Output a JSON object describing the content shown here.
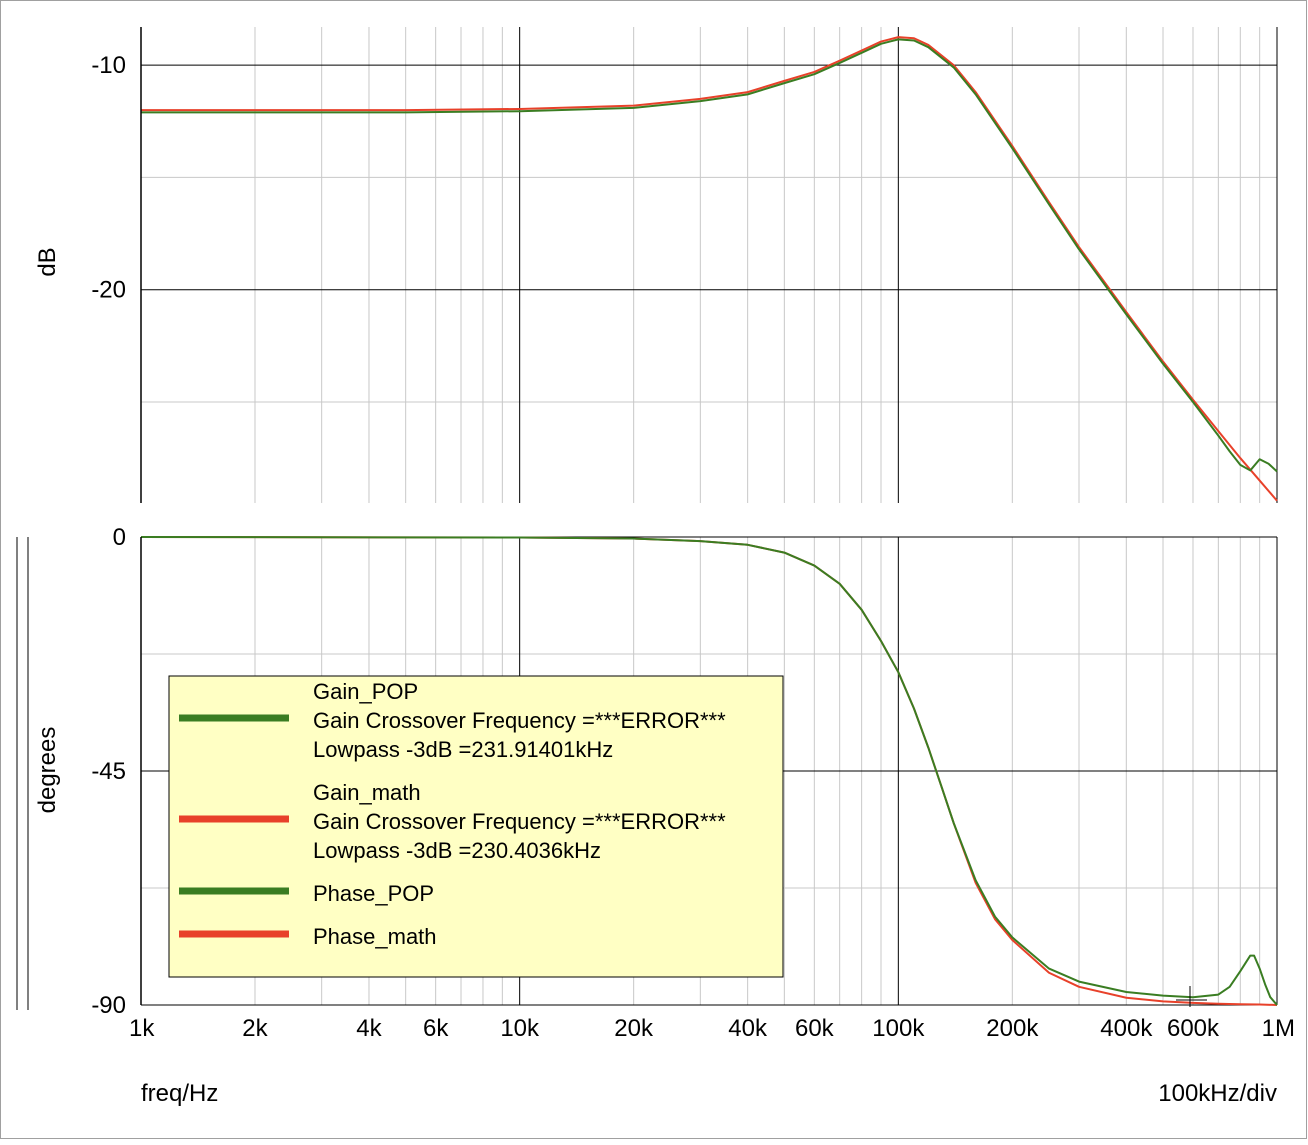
{
  "chart_data": [
    {
      "type": "line",
      "ylabel": "dB",
      "x_scale": "log",
      "xlim": [
        1000,
        1000000
      ],
      "ylim": [
        -29.5,
        -8.3
      ],
      "y_ticks": [
        {
          "value": -10,
          "label": "-10"
        },
        {
          "value": -20,
          "label": "-20"
        }
      ],
      "grid": true,
      "series": [
        {
          "name": "Gain_POP",
          "color": "#3a7d22",
          "x": [
            1000,
            5000,
            10000,
            20000,
            30000,
            40000,
            50000,
            60000,
            70000,
            80000,
            90000,
            100000,
            110000,
            120000,
            140000,
            160000,
            200000,
            250000,
            300000,
            400000,
            500000,
            600000,
            700000,
            750000,
            800000,
            850000,
            900000,
            950000,
            1000000
          ],
          "y": [
            -12.1,
            -12.1,
            -12.05,
            -11.9,
            -11.6,
            -11.3,
            -10.8,
            -10.4,
            -9.9,
            -9.45,
            -9.05,
            -8.85,
            -8.9,
            -9.2,
            -10.1,
            -11.3,
            -13.7,
            -16.2,
            -18.2,
            -21.1,
            -23.3,
            -25.0,
            -26.5,
            -27.2,
            -27.8,
            -28.05,
            -27.55,
            -27.75,
            -28.1
          ]
        },
        {
          "name": "Gain_math",
          "color": "#e8412a",
          "x": [
            1000,
            5000,
            10000,
            20000,
            30000,
            40000,
            50000,
            60000,
            70000,
            80000,
            90000,
            100000,
            110000,
            120000,
            140000,
            160000,
            200000,
            250000,
            300000,
            400000,
            500000,
            600000,
            700000,
            800000,
            900000,
            1000000
          ],
          "y": [
            -12.0,
            -12.0,
            -11.95,
            -11.8,
            -11.5,
            -11.2,
            -10.7,
            -10.3,
            -9.8,
            -9.35,
            -8.95,
            -8.75,
            -8.8,
            -9.1,
            -10.0,
            -11.2,
            -13.6,
            -16.1,
            -18.1,
            -21.0,
            -23.2,
            -24.9,
            -26.3,
            -27.5,
            -28.5,
            -29.4
          ]
        }
      ]
    },
    {
      "type": "line",
      "ylabel": "degrees",
      "xlabel": "freq/Hz",
      "x_scale": "log",
      "xlim": [
        1000,
        1000000
      ],
      "ylim": [
        -90,
        0
      ],
      "x_ticks": [
        {
          "value": 1000,
          "label": "1k"
        },
        {
          "value": 2000,
          "label": "2k"
        },
        {
          "value": 4000,
          "label": "4k"
        },
        {
          "value": 6000,
          "label": "6k"
        },
        {
          "value": 10000,
          "label": "10k"
        },
        {
          "value": 20000,
          "label": "20k"
        },
        {
          "value": 40000,
          "label": "40k"
        },
        {
          "value": 60000,
          "label": "60k"
        },
        {
          "value": 100000,
          "label": "100k"
        },
        {
          "value": 200000,
          "label": "200k"
        },
        {
          "value": 400000,
          "label": "400k"
        },
        {
          "value": 600000,
          "label": "600k"
        },
        {
          "value": 1000000,
          "label": "1M"
        }
      ],
      "y_ticks": [
        {
          "value": 0,
          "label": "0"
        },
        {
          "value": -45,
          "label": "-45"
        },
        {
          "value": -90,
          "label": "-90"
        }
      ],
      "grid": true,
      "series": [
        {
          "name": "Phase_POP",
          "color": "#3a7d22",
          "x": [
            1000,
            10000,
            20000,
            30000,
            40000,
            50000,
            60000,
            70000,
            80000,
            90000,
            100000,
            110000,
            120000,
            130000,
            140000,
            160000,
            180000,
            200000,
            250000,
            300000,
            400000,
            500000,
            600000,
            700000,
            750000,
            800000,
            850000,
            870000,
            900000,
            930000,
            960000,
            1000000
          ],
          "y": [
            0,
            -0.1,
            -0.3,
            -0.8,
            -1.5,
            -3.0,
            -5.5,
            -9.0,
            -14.0,
            -20.0,
            -26.0,
            -33.0,
            -40.5,
            -48.0,
            -55.0,
            -66.0,
            -73.0,
            -77.0,
            -83.0,
            -85.5,
            -87.5,
            -88.2,
            -88.5,
            -88.0,
            -86.5,
            -83.5,
            -80.5,
            -80.5,
            -83.0,
            -86.0,
            -88.5,
            -90
          ]
        },
        {
          "name": "Phase_math",
          "color": "#e8412a",
          "x": [
            1000,
            10000,
            20000,
            30000,
            40000,
            50000,
            60000,
            70000,
            80000,
            90000,
            100000,
            110000,
            120000,
            130000,
            140000,
            160000,
            180000,
            200000,
            250000,
            300000,
            400000,
            500000,
            600000,
            700000,
            800000,
            900000,
            1000000
          ],
          "y": [
            0,
            -0.1,
            -0.3,
            -0.8,
            -1.5,
            -3.0,
            -5.5,
            -9.0,
            -14.0,
            -20.0,
            -26.0,
            -33.0,
            -40.5,
            -48.0,
            -55.0,
            -66.5,
            -73.5,
            -77.5,
            -83.8,
            -86.5,
            -88.6,
            -89.3,
            -89.6,
            -89.75,
            -89.85,
            -89.9,
            -90
          ]
        }
      ]
    }
  ],
  "footer": {
    "xlabel": "freq/Hz",
    "scale_text": "100kHz/div"
  },
  "legend": {
    "placement": "lower-left of bottom panel",
    "entries": [
      {
        "color": "#3a7d22",
        "lines": [
          "Gain_POP",
          "Gain Crossover Frequency =***ERROR***",
          "Lowpass -3dB =231.91401kHz"
        ]
      },
      {
        "color": "#e8412a",
        "lines": [
          "Gain_math",
          "Gain Crossover Frequency =***ERROR***",
          "Lowpass -3dB =230.4036kHz"
        ]
      },
      {
        "color": "#3a7d22",
        "lines": [
          "Phase_POP"
        ]
      },
      {
        "color": "#e8412a",
        "lines": [
          "Phase_math"
        ]
      }
    ]
  }
}
